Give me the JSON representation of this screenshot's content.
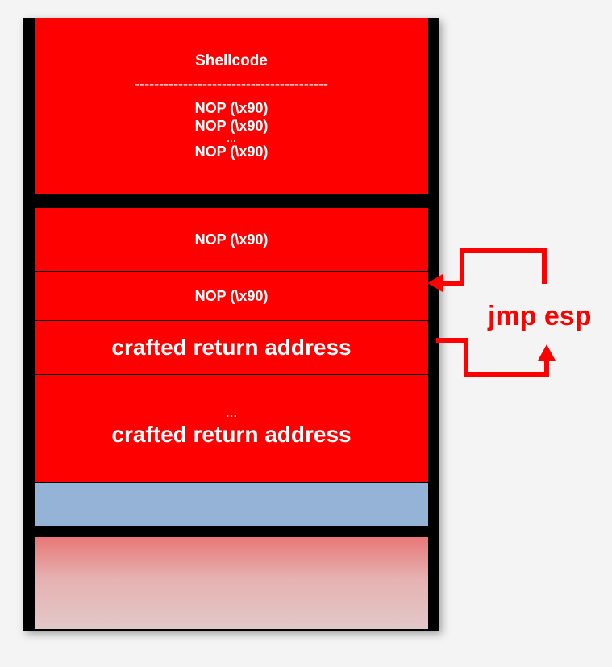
{
  "shellcode_block": {
    "title": "Shellcode",
    "separator": "----------------------------------------",
    "nop_1": "NOP (\\x90)",
    "nop_2": "NOP (\\x90)",
    "ellipsis": "…",
    "nop_3": "NOP (\\x90)"
  },
  "nop_slot_upper": "NOP (\\x90)",
  "nop_slot_lower": "NOP (\\x90)",
  "return_slot": "crafted return address",
  "return_fill": {
    "ellipsis": "…",
    "label": "crafted return address"
  },
  "jump_label": "jmp esp",
  "colors": {
    "payload_red": "#fe0000",
    "frame_black": "#000000",
    "blue_region": "#95b3d7",
    "background": "#f4f4f4"
  }
}
